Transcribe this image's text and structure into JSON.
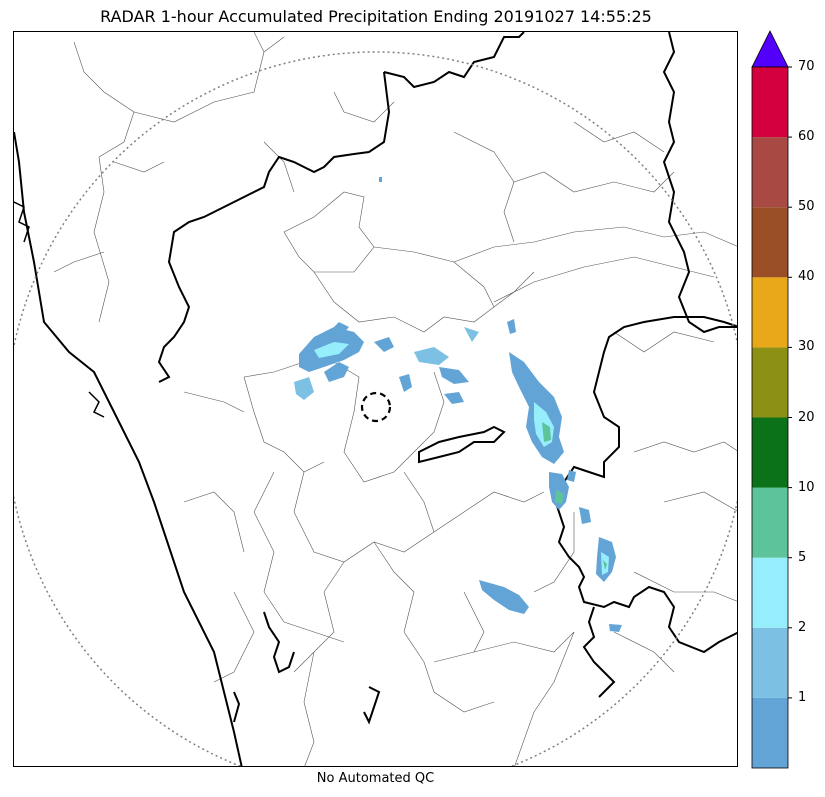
{
  "title": "RADAR 1-hour Accumulated Precipitation Ending 20191027 14:55:25",
  "footer": "No Automated QC",
  "colorbar": {
    "labels": [
      "1",
      "2",
      "5",
      "10",
      "20",
      "30",
      "40",
      "50",
      "60",
      "70"
    ],
    "bins": [
      {
        "color": "#63a4d6"
      },
      {
        "color": "#7cc0e4"
      },
      {
        "color": "#96eefc"
      },
      {
        "color": "#5cc39a"
      },
      {
        "color": "#0c7219"
      },
      {
        "color": "#8c9115"
      },
      {
        "color": "#e8a819"
      },
      {
        "color": "#9a4e26"
      },
      {
        "color": "#a94943"
      },
      {
        "color": "#d4003d"
      }
    ],
    "extend_color": "#5200fc"
  },
  "map": {
    "boundary_color": "#000000",
    "district_color": "#555555",
    "range_ring_color": "#808080"
  }
}
